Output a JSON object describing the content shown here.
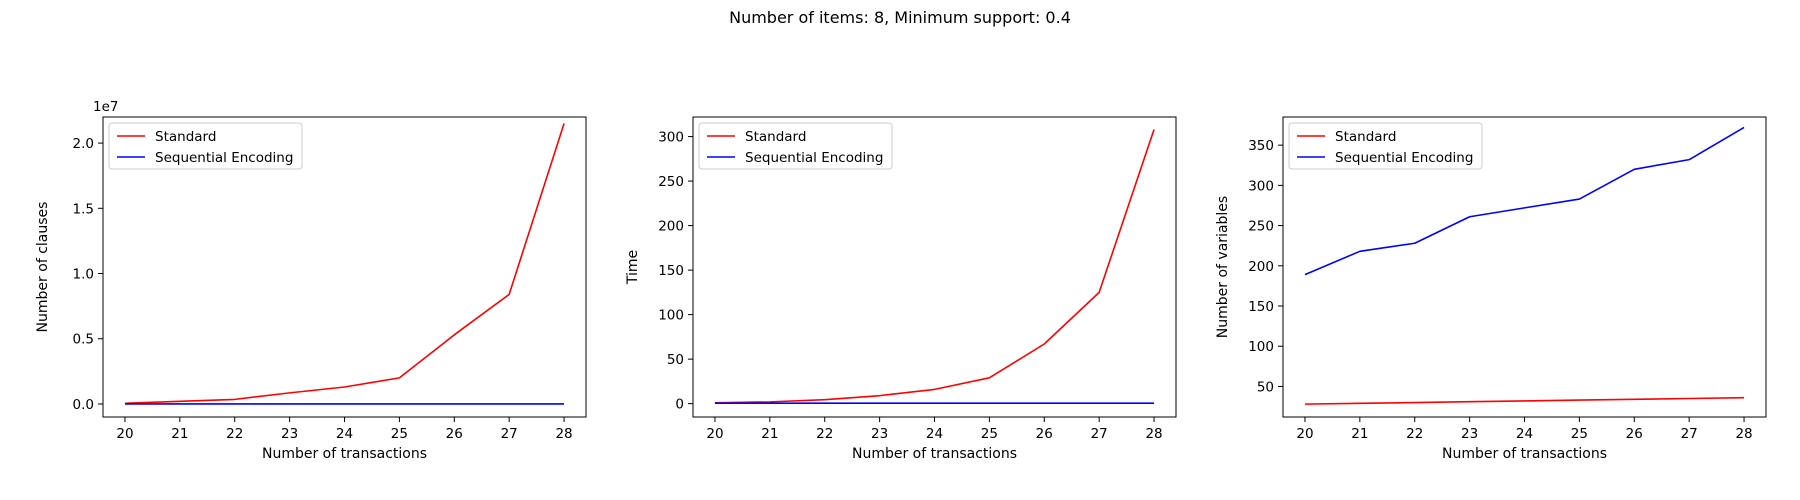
{
  "figure": {
    "suptitle": "Number of items: 8, Minimum support: 0.4"
  },
  "chart_data": [
    {
      "type": "line",
      "xlabel": "Number of transactions",
      "ylabel": "Number of clauses",
      "offset_text": "1e7",
      "x": [
        20,
        21,
        22,
        23,
        24,
        25,
        26,
        27,
        28
      ],
      "xlim": [
        19.6,
        28.4
      ],
      "ylim": [
        -0.1,
        2.2
      ],
      "xticks": [
        20,
        21,
        22,
        23,
        24,
        25,
        26,
        27,
        28
      ],
      "yticks": [
        0.0,
        0.5,
        1.0,
        1.5,
        2.0
      ],
      "ytick_labels": [
        "0.0",
        "0.5",
        "1.0",
        "1.5",
        "2.0"
      ],
      "legend": "upper left",
      "grid": false,
      "series": [
        {
          "name": "Standard",
          "color": "#ff0000",
          "values": [
            0.005,
            0.02,
            0.035,
            0.085,
            0.13,
            0.2,
            0.53,
            0.84,
            2.15
          ]
        },
        {
          "name": "Sequential Encoding",
          "color": "#0000ff",
          "values": [
            0.0,
            0.0,
            0.0,
            0.0,
            0.0,
            0.0,
            0.0,
            0.0,
            0.0
          ]
        }
      ]
    },
    {
      "type": "line",
      "xlabel": "Number of transactions",
      "ylabel": "Time",
      "offset_text": "",
      "x": [
        20,
        21,
        22,
        23,
        24,
        25,
        26,
        27,
        28
      ],
      "xlim": [
        19.6,
        28.4
      ],
      "ylim": [
        -15,
        322
      ],
      "xticks": [
        20,
        21,
        22,
        23,
        24,
        25,
        26,
        27,
        28
      ],
      "yticks": [
        0,
        50,
        100,
        150,
        200,
        250,
        300
      ],
      "ytick_labels": [
        "0",
        "50",
        "100",
        "150",
        "200",
        "250",
        "300"
      ],
      "legend": "upper left",
      "grid": false,
      "series": [
        {
          "name": "Standard",
          "color": "#ff0000",
          "values": [
            1,
            2,
            4.5,
            9,
            16,
            29,
            67,
            125,
            308
          ]
        },
        {
          "name": "Sequential Encoding",
          "color": "#0000ff",
          "values": [
            0.5,
            0.5,
            0.5,
            0.5,
            0.5,
            0.5,
            0.5,
            0.5,
            0.5
          ]
        }
      ]
    },
    {
      "type": "line",
      "xlabel": "Number of transactions",
      "ylabel": "Number of variables",
      "offset_text": "",
      "x": [
        20,
        21,
        22,
        23,
        24,
        25,
        26,
        27,
        28
      ],
      "xlim": [
        19.6,
        28.4
      ],
      "ylim": [
        12,
        385
      ],
      "xticks": [
        20,
        21,
        22,
        23,
        24,
        25,
        26,
        27,
        28
      ],
      "yticks": [
        50,
        100,
        150,
        200,
        250,
        300,
        350
      ],
      "ytick_labels": [
        "50",
        "100",
        "150",
        "200",
        "250",
        "300",
        "350"
      ],
      "legend": "upper left",
      "grid": false,
      "series": [
        {
          "name": "Standard",
          "color": "#ff0000",
          "values": [
            28,
            29,
            30,
            31,
            32,
            33,
            34,
            35,
            36
          ]
        },
        {
          "name": "Sequential Encoding",
          "color": "#0000ff",
          "values": [
            189,
            218,
            228,
            261,
            272,
            283,
            320,
            332,
            372
          ]
        }
      ]
    }
  ]
}
